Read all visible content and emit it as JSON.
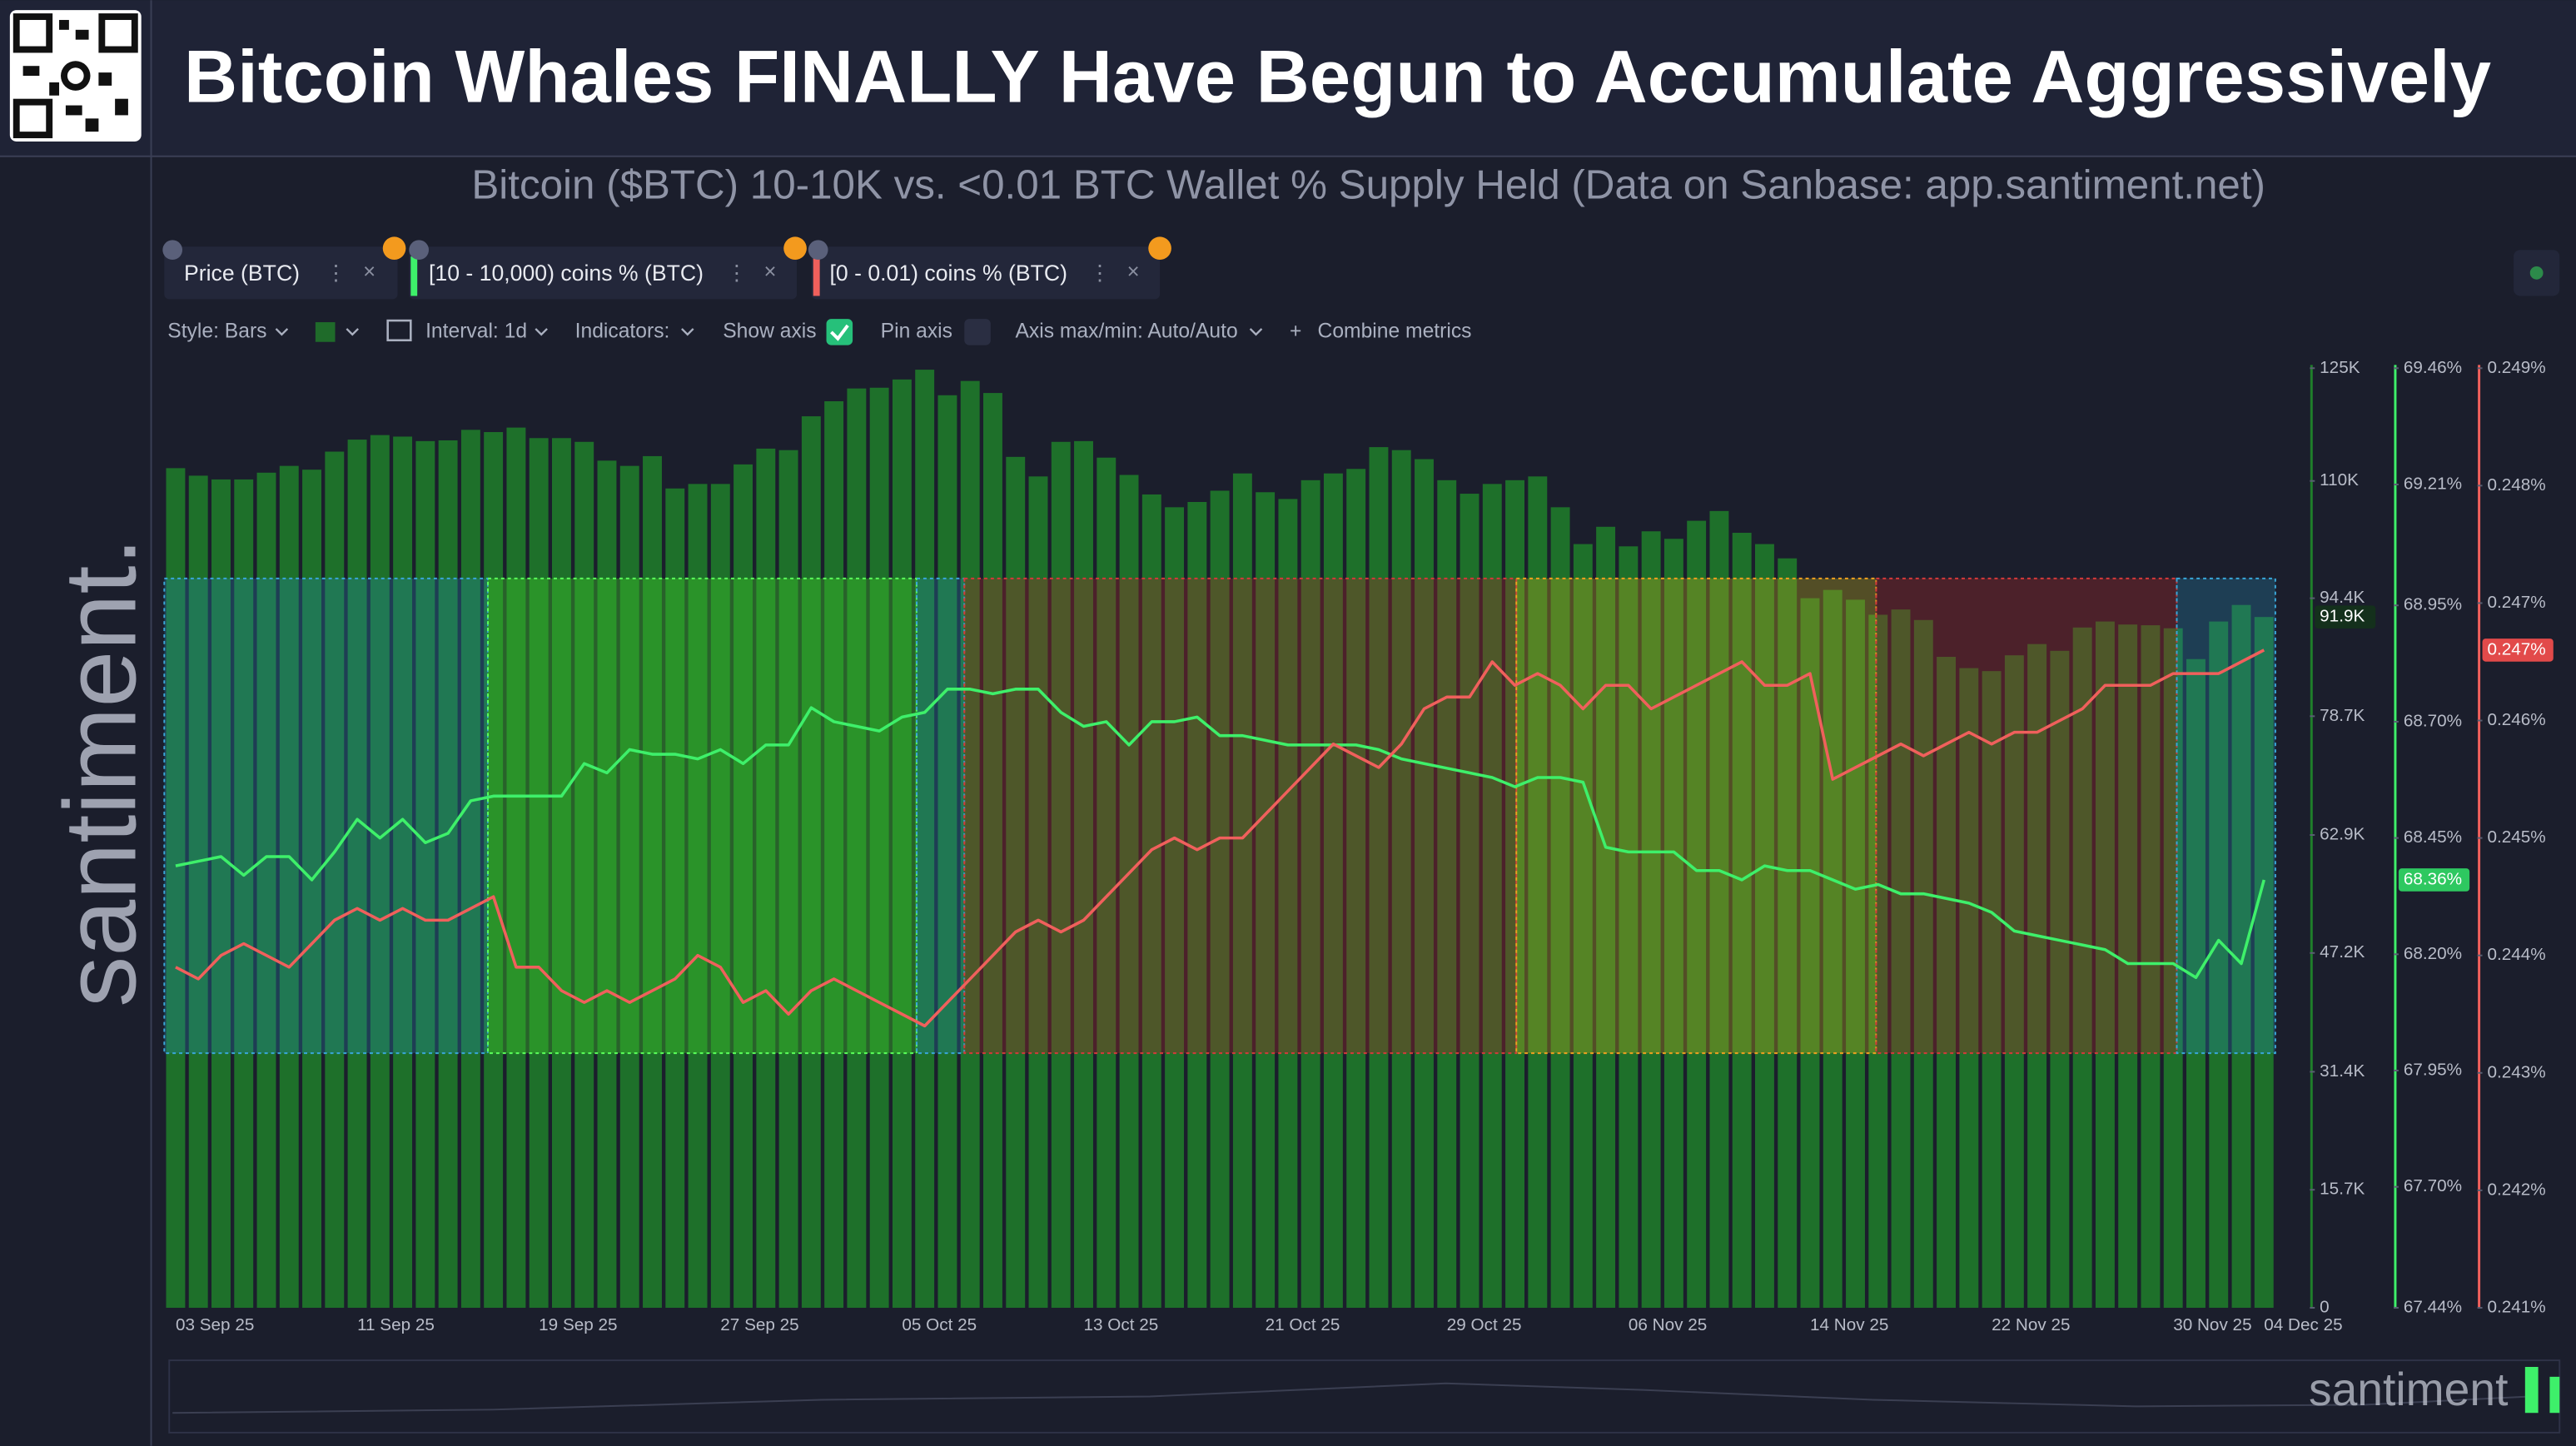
{
  "header": {
    "title": "Bitcoin Whales FINALLY Have Begun to Accumulate Aggressively",
    "subtitle": "Bitcoin ($BTC) 10-10K vs. <0.01 BTC Wallet % Supply Held (Data on Sanbase: app.santiment.net)"
  },
  "toolbar": {
    "style": "Style: Bars",
    "interval": "Interval: 1d",
    "indicators": "Indicators:",
    "show_axis": "Show axis",
    "pin_axis": "Pin axis",
    "axis_minmax": "Axis max/min: Auto/Auto",
    "combine": "Combine metrics"
  },
  "brand": "santiment.",
  "watermark": "santiment",
  "chart_data": {
    "type": "combo",
    "categories": [
      "03 Sep 25",
      null,
      null,
      null,
      null,
      null,
      null,
      null,
      "11 Sep 25",
      null,
      null,
      null,
      null,
      null,
      null,
      null,
      "19 Sep 25",
      null,
      null,
      null,
      null,
      null,
      null,
      null,
      "27 Sep 25",
      null,
      null,
      null,
      null,
      null,
      null,
      null,
      "05 Oct 25",
      null,
      null,
      null,
      null,
      null,
      null,
      null,
      "13 Oct 25",
      null,
      null,
      null,
      null,
      null,
      null,
      null,
      "21 Oct 25",
      null,
      null,
      null,
      null,
      null,
      null,
      null,
      "29 Oct 25",
      null,
      null,
      null,
      null,
      null,
      null,
      null,
      "06 Nov 25",
      null,
      null,
      null,
      null,
      null,
      null,
      null,
      "14 Nov 25",
      null,
      null,
      null,
      null,
      null,
      null,
      null,
      "22 Nov 25",
      null,
      null,
      null,
      null,
      null,
      null,
      null,
      "30 Nov 25",
      null,
      null,
      null,
      "04 Dec 25"
    ],
    "series": [
      {
        "name": "Price (BTC)",
        "type": "bar",
        "axis": "y",
        "color": "#1f7f2a",
        "last_label": "91.9K",
        "values": [
          111700,
          110700,
          110200,
          110200,
          111100,
          112000,
          111500,
          113900,
          115500,
          116100,
          115900,
          115300,
          115400,
          116800,
          116500,
          117100,
          115700,
          115700,
          115200,
          112700,
          112000,
          113300,
          109000,
          109600,
          109600,
          112200,
          114300,
          114100,
          118600,
          120600,
          122300,
          122400,
          123500,
          124800,
          121400,
          123300,
          121700,
          113200,
          110600,
          115200,
          115300,
          113100,
          110800,
          108200,
          106500,
          107200,
          108700,
          111000,
          108500,
          107600,
          110100,
          111000,
          111600,
          114500,
          114100,
          112900,
          110100,
          108300,
          109600,
          110100,
          110600,
          106500,
          101600,
          103900,
          101300,
          103300,
          102300,
          104700,
          106000,
          103100,
          101600,
          99700,
          94400,
          95500,
          94200,
          92200,
          92900,
          91500,
          86600,
          85100,
          84700,
          86800,
          88300,
          87400,
          90500,
          91300,
          90900,
          90800,
          90400,
          86300,
          91300,
          93500,
          91900
        ]
      },
      {
        "name": "[10 - 10,000) coins % (BTC)",
        "type": "line",
        "axis": "y2",
        "color": "#3ef06a",
        "last_label": "68.36%",
        "values": [
          68.39,
          68.4,
          68.41,
          68.37,
          68.41,
          68.41,
          68.36,
          68.42,
          68.49,
          68.45,
          68.49,
          68.44,
          68.46,
          68.53,
          68.54,
          68.54,
          68.54,
          68.54,
          68.61,
          68.59,
          68.64,
          68.63,
          68.63,
          68.62,
          68.64,
          68.61,
          68.65,
          68.65,
          68.73,
          68.7,
          68.69,
          68.68,
          68.71,
          68.72,
          68.77,
          68.77,
          68.76,
          68.77,
          68.77,
          68.72,
          68.69,
          68.7,
          68.65,
          68.7,
          68.7,
          68.71,
          68.67,
          68.67,
          68.66,
          68.65,
          68.65,
          68.65,
          68.65,
          68.64,
          68.62,
          68.61,
          68.6,
          68.59,
          68.58,
          68.56,
          68.58,
          68.58,
          68.57,
          68.43,
          68.42,
          68.42,
          68.42,
          68.38,
          68.38,
          68.36,
          68.39,
          68.38,
          68.38,
          68.36,
          68.34,
          68.35,
          68.33,
          68.33,
          68.32,
          68.31,
          68.29,
          68.25,
          68.24,
          68.23,
          68.22,
          68.21,
          68.18,
          68.18,
          68.18,
          68.15,
          68.23,
          68.18,
          68.36
        ]
      },
      {
        "name": "[0 - 0.01) coins % (BTC)",
        "type": "line",
        "axis": "y3",
        "color": "#f0605c",
        "last_label": "0.247%",
        "values": [
          0.2439,
          0.2438,
          0.244,
          0.2441,
          0.244,
          0.2439,
          0.2441,
          0.2443,
          0.2444,
          0.2443,
          0.2444,
          0.2443,
          0.2443,
          0.2444,
          0.2445,
          0.2439,
          0.2439,
          0.2437,
          0.2436,
          0.2437,
          0.2436,
          0.2437,
          0.2438,
          0.244,
          0.2439,
          0.2436,
          0.2437,
          0.2435,
          0.2437,
          0.2438,
          0.2437,
          0.2436,
          0.2435,
          0.2434,
          0.2436,
          0.2438,
          0.244,
          0.2442,
          0.2443,
          0.2442,
          0.2443,
          0.2445,
          0.2447,
          0.2449,
          0.245,
          0.2449,
          0.245,
          0.245,
          0.2452,
          0.2454,
          0.2456,
          0.2458,
          0.2457,
          0.2456,
          0.2458,
          0.2461,
          0.2462,
          0.2462,
          0.2465,
          0.2463,
          0.2464,
          0.2463,
          0.2461,
          0.2463,
          0.2463,
          0.2461,
          0.2462,
          0.2463,
          0.2464,
          0.2465,
          0.2463,
          0.2463,
          0.2464,
          0.2455,
          0.2456,
          0.2457,
          0.2458,
          0.2457,
          0.2458,
          0.2459,
          0.2458,
          0.2459,
          0.2459,
          0.246,
          0.2461,
          0.2463,
          0.2463,
          0.2463,
          0.2464,
          0.2464,
          0.2464,
          0.2465,
          0.2466
        ]
      }
    ],
    "ylim": [
      0,
      125000
    ],
    "yticks": [
      0,
      {
        "value": 15700,
        "label": "15.7K"
      },
      {
        "value": 31400,
        "label": "31.4K"
      },
      {
        "value": 47200,
        "label": "47.2K"
      },
      {
        "value": 62900,
        "label": "62.9K"
      },
      {
        "value": 78700,
        "label": "78.7K"
      },
      {
        "value": 94400,
        "label": "94.4K"
      },
      {
        "value": 110000,
        "label": "110K"
      },
      {
        "value": 125000,
        "label": "125K"
      }
    ],
    "y2lim": [
      67.44,
      69.46
    ],
    "y2ticks": [
      {
        "value": 67.44,
        "label": "67.44%"
      },
      {
        "value": 67.7,
        "label": "67.70%"
      },
      {
        "value": 67.95,
        "label": "67.95%"
      },
      {
        "value": 68.2,
        "label": "68.20%"
      },
      {
        "value": 68.45,
        "label": "68.45%"
      },
      {
        "value": 68.7,
        "label": "68.70%"
      },
      {
        "value": 68.95,
        "label": "68.95%"
      },
      {
        "value": 69.21,
        "label": "69.21%"
      },
      {
        "value": 69.46,
        "label": "69.46%"
      }
    ],
    "y3lim": [
      0.241,
      0.249
    ],
    "y3ticks": [
      {
        "value": 0.241,
        "label": "0.241%"
      },
      {
        "value": 0.242,
        "label": "0.242%"
      },
      {
        "value": 0.243,
        "label": "0.243%"
      },
      {
        "value": 0.244,
        "label": "0.244%"
      },
      {
        "value": 0.245,
        "label": "0.245%"
      },
      {
        "value": 0.246,
        "label": "0.246%"
      },
      {
        "value": 0.247,
        "label": "0.247%"
      },
      {
        "value": 0.248,
        "label": "0.248%"
      },
      {
        "value": 0.249,
        "label": "0.249%"
      }
    ],
    "grid": false
  }
}
